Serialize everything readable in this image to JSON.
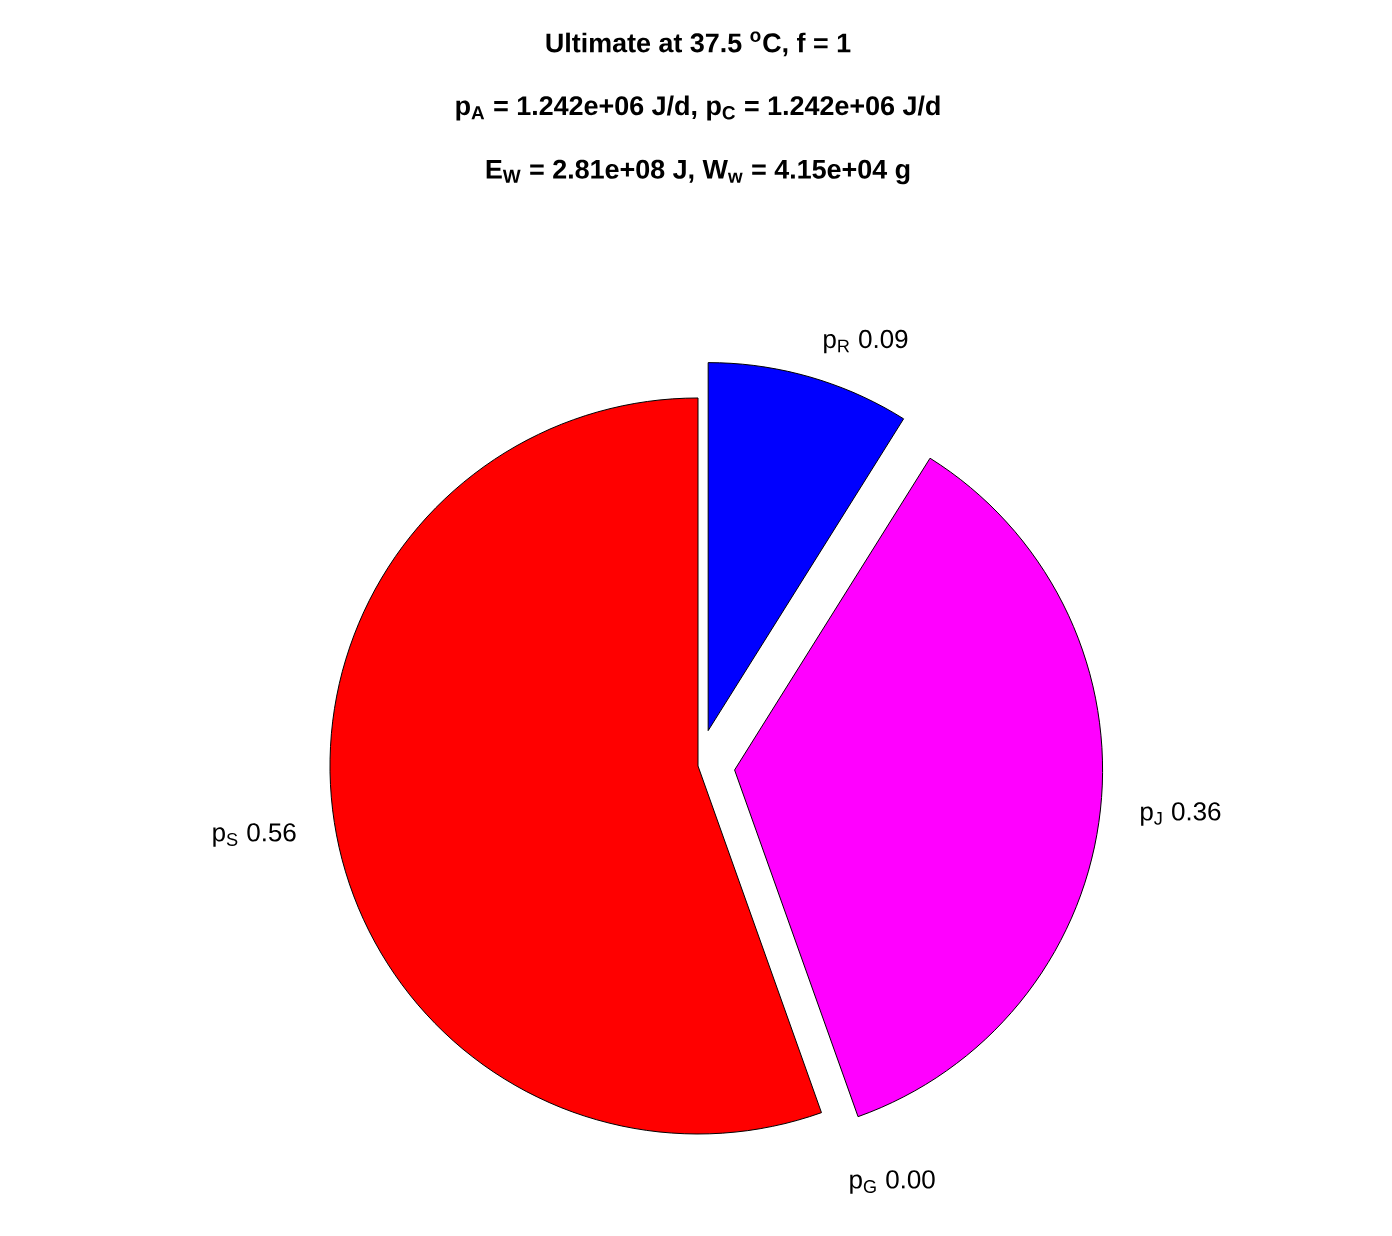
{
  "chart_data": {
    "type": "pie",
    "title": "Ultimate at 37.5 $^{o}$C, f = 1",
    "subtitle": "p$_{A}$ = 1.242e+06 J/d, p$_{C}$ = 1.242e+06 J/d",
    "annotations": [
      "E$_{W}$ = 2.81e+08 J, W$_{w}$ = 4.15e+04 g"
    ],
    "categories": [
      "p$_{R}$ 0.09",
      "p$_{J}$ 0.36",
      "p$_{G}$ 0.00",
      "p$_{S}$ 0.56"
    ],
    "values": [
      0.09,
      0.36,
      0.0,
      0.56
    ],
    "colors": [
      "#0000ff",
      "#ff00ff",
      "#ffffff",
      "#ff0000"
    ]
  }
}
